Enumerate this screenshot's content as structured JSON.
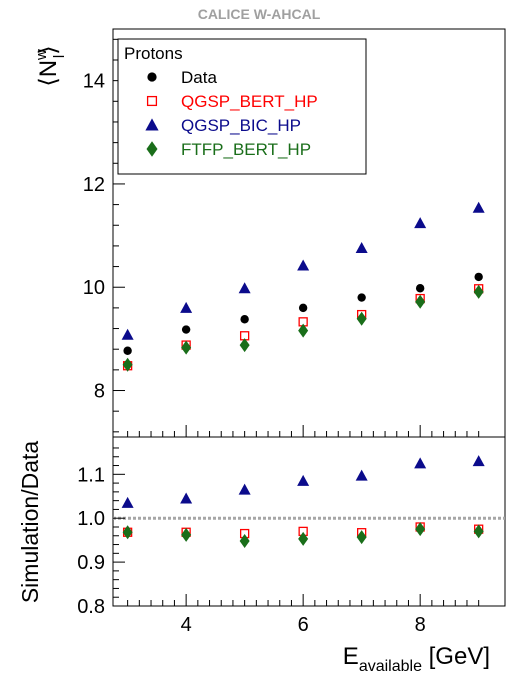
{
  "header": "CALICE W-AHCAL",
  "colors": {
    "data": "#000000",
    "qgsp_bert": "#ff0000",
    "qgsp_bic": "#0b0b8c",
    "ftfp_bert": "#1a6e1a",
    "ref_line": "#a6a6a6"
  },
  "legend": {
    "title": "Protons",
    "entries": [
      {
        "label": "Data",
        "marker": "circle",
        "color": "#000000"
      },
      {
        "label": "QGSP_BERT_HP",
        "marker": "open-square",
        "color": "#ff0000"
      },
      {
        "label": "QGSP_BIC_HP",
        "marker": "triangle",
        "color": "#0b0b8c"
      },
      {
        "label": "FTFP_BERT_HP",
        "marker": "diamond",
        "color": "#1a6e1a"
      }
    ]
  },
  "chart_data": [
    {
      "type": "scatter",
      "ylabel_parts": {
        "open": "⟨N",
        "sup": "w",
        "sub": "l",
        "close": "⟩"
      },
      "xlim": [
        2.75,
        9.45
      ],
      "ylim": [
        7.1,
        15.0
      ],
      "yticks": [
        8,
        10,
        12,
        14
      ],
      "x": [
        3,
        4,
        5,
        6,
        7,
        8,
        9
      ],
      "series": [
        {
          "name": "Data",
          "values": [
            8.77,
            9.18,
            9.38,
            9.6,
            9.8,
            9.98,
            10.2
          ]
        },
        {
          "name": "QGSP_BERT_HP",
          "values": [
            8.48,
            8.88,
            9.06,
            9.33,
            9.47,
            9.78,
            9.97
          ]
        },
        {
          "name": "QGSP_BIC_HP",
          "values": [
            9.08,
            9.6,
            9.98,
            10.42,
            10.76,
            11.24,
            11.54
          ]
        },
        {
          "name": "FTFP_BERT_HP",
          "values": [
            8.5,
            8.83,
            8.88,
            9.16,
            9.39,
            9.72,
            9.91
          ]
        }
      ]
    },
    {
      "type": "scatter",
      "ylabel": "Simulation/Data",
      "xlabel_parts": {
        "main": "E",
        "sub": "available",
        "unit": " [GeV]"
      },
      "xlim": [
        2.75,
        9.45
      ],
      "ylim": [
        0.8,
        1.185
      ],
      "yticks": [
        "0.8",
        "0.9",
        "1.0",
        "1.1"
      ],
      "xticks": [
        4,
        6,
        8
      ],
      "reference_line": 1.0,
      "x": [
        3,
        4,
        5,
        6,
        7,
        8,
        9
      ],
      "series": [
        {
          "name": "QGSP_BERT_HP",
          "values": [
            0.968,
            0.968,
            0.965,
            0.97,
            0.967,
            0.98,
            0.975
          ]
        },
        {
          "name": "QGSP_BIC_HP",
          "values": [
            1.035,
            1.045,
            1.065,
            1.085,
            1.097,
            1.125,
            1.13
          ]
        },
        {
          "name": "FTFP_BERT_HP",
          "values": [
            0.968,
            0.962,
            0.948,
            0.953,
            0.957,
            0.975,
            0.97
          ]
        }
      ]
    }
  ]
}
